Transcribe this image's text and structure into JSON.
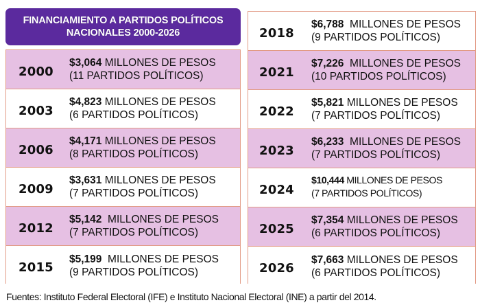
{
  "title": {
    "line1": "FINANCIAMIENTO A PARTIDOS POLÍTICOS",
    "line2": "NACIONALES 2000-2026"
  },
  "unit_label": "MILLONES DE PESOS",
  "left_rows": [
    {
      "year": "2000",
      "amount": "$3,064",
      "unit": " MILLONES DE PESOS",
      "parties": "(11 PARTIDOS POLÍTICOS)",
      "shade": "shaded"
    },
    {
      "year": "2003",
      "amount": "$4,823",
      "unit": " MILLONES DE PESOS",
      "parties": "(6 PARTIDOS POLÍTICOS)",
      "shade": "white"
    },
    {
      "year": "2006",
      "amount": "$4,171",
      "unit": " MILLONES DE PESOS",
      "parties": "(8 PARTIDOS POLÍTICOS)",
      "shade": "shaded"
    },
    {
      "year": "2009",
      "amount": "$3,631",
      "unit": " MILLONES DE PESOS",
      "parties": "(7 PARTIDOS POLÍTICOS)",
      "shade": "white"
    },
    {
      "year": "2012",
      "amount": "$5,142",
      "unit": "  MILLONES DE PESOS",
      "parties": "(7 PARTIDOS POLÍTICOS)",
      "shade": "shaded"
    },
    {
      "year": "2015",
      "amount": "$5,199",
      "unit": "  MILLONES DE PESOS",
      "parties": "(9 PARTIDOS POLÍTICOS)",
      "shade": "white"
    }
  ],
  "right_rows": [
    {
      "year": "2018",
      "amount": "$6,788",
      "unit": "  MILLONES DE PESOS",
      "parties": "(9 PARTIDOS POLÍTICOS)",
      "shade": "white"
    },
    {
      "year": "2021",
      "amount": "$7,226",
      "unit": "  MILLONES DE PESOS",
      "parties": "(10 PARTIDOS POLÍTICOS)",
      "shade": "shaded"
    },
    {
      "year": "2022",
      "amount": "$5,821",
      "unit": " MILLONES DE PESOS",
      "parties": "(7 PARTIDOS POLÍTICOS)",
      "shade": "white"
    },
    {
      "year": "2023",
      "amount": "$6,233",
      "unit": "  MILLONES DE PESOS",
      "parties": "(7 PARTIDOS POLÍTICOS)",
      "shade": "shaded"
    },
    {
      "year": "2024",
      "amount": "$10,444",
      "unit": " MILLONES DE PESOS",
      "parties": "(7 PARTIDOS POLÍTICOS)",
      "shade": "white",
      "condensed": true
    },
    {
      "year": "2025",
      "amount": "$7,354",
      "unit": " MILLONES DE PESOS",
      "parties": "(6 PARTIDOS POLÍTICOS)",
      "shade": "shaded"
    },
    {
      "year": "2026",
      "amount": "$7,663",
      "unit": " MILLONES DE PESOS",
      "parties": "(6 PARTIDOS POLÍTICOS)",
      "shade": "white"
    }
  ],
  "footer": "Fuentes: Instituto Federal Electoral (IFE) e Instituto Nacional Electoral (INE) a partir del 2014.",
  "colors": {
    "title_bg": "#5b2a9e",
    "row_shaded": "#e6c0e3",
    "row_white": "#ffffff",
    "border": "#e29a84"
  }
}
